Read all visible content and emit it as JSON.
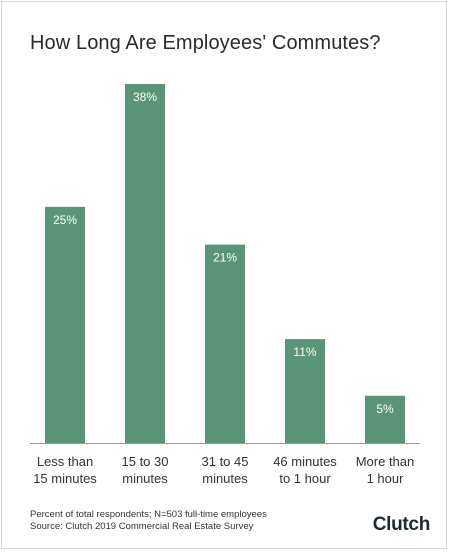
{
  "header": {
    "title": "How Long Are Employees' Commutes?"
  },
  "chart_data": {
    "type": "bar",
    "title": "How Long Are Employees' Commutes?",
    "categories": [
      [
        "Less than",
        "15 minutes"
      ],
      [
        "15 to 30",
        "minutes"
      ],
      [
        "31 to 45",
        "minutes"
      ],
      [
        "46 minutes",
        "to 1 hour"
      ],
      [
        "More than",
        "1 hour"
      ]
    ],
    "values": [
      25,
      38,
      21,
      11,
      5
    ],
    "value_labels": [
      "25%",
      "38%",
      "21%",
      "11%",
      "5%"
    ],
    "unit": "%",
    "ylim": [
      0,
      38
    ],
    "grid": false,
    "legend": "none",
    "colors": {
      "bar": "#5a9579",
      "bar_label": "#ffffff",
      "axis": "#999999",
      "tick_label": "#333333"
    }
  },
  "footer": {
    "note_line1": "Percent of total respondents; N=503 full-time employees",
    "note_line2": "Source: Clutch 2019 Commercial Real Estate Survey",
    "brand": "Clutch"
  }
}
